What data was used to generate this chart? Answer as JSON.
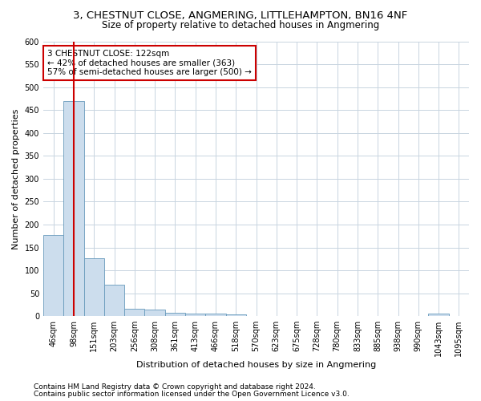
{
  "title1": "3, CHESTNUT CLOSE, ANGMERING, LITTLEHAMPTON, BN16 4NF",
  "title2": "Size of property relative to detached houses in Angmering",
  "xlabel": "Distribution of detached houses by size in Angmering",
  "ylabel": "Number of detached properties",
  "bar_color": "#ccdded",
  "bar_edge_color": "#6699bb",
  "vline_color": "#cc0000",
  "vline_x": 1.0,
  "annotation_text": "3 CHESTNUT CLOSE: 122sqm\n← 42% of detached houses are smaller (363)\n57% of semi-detached houses are larger (500) →",
  "annotation_box_color": "#ffffff",
  "annotation_box_edge": "#cc0000",
  "categories": [
    "46sqm",
    "98sqm",
    "151sqm",
    "203sqm",
    "256sqm",
    "308sqm",
    "361sqm",
    "413sqm",
    "466sqm",
    "518sqm",
    "570sqm",
    "623sqm",
    "675sqm",
    "728sqm",
    "780sqm",
    "833sqm",
    "885sqm",
    "938sqm",
    "990sqm",
    "1043sqm",
    "1095sqm"
  ],
  "bar_heights": [
    178,
    470,
    127,
    68,
    16,
    15,
    8,
    6,
    5,
    4,
    0,
    0,
    0,
    0,
    0,
    0,
    0,
    0,
    0,
    5,
    0
  ],
  "ylim": [
    0,
    600
  ],
  "yticks": [
    0,
    50,
    100,
    150,
    200,
    250,
    300,
    350,
    400,
    450,
    500,
    550,
    600
  ],
  "footnote1": "Contains HM Land Registry data © Crown copyright and database right 2024.",
  "footnote2": "Contains public sector information licensed under the Open Government Licence v3.0.",
  "title1_fontsize": 9.5,
  "title2_fontsize": 8.5,
  "axis_label_fontsize": 8,
  "tick_fontsize": 7,
  "annotation_fontsize": 7.5,
  "footnote_fontsize": 6.5,
  "background_color": "#ffffff",
  "grid_color": "#c8d4e0"
}
